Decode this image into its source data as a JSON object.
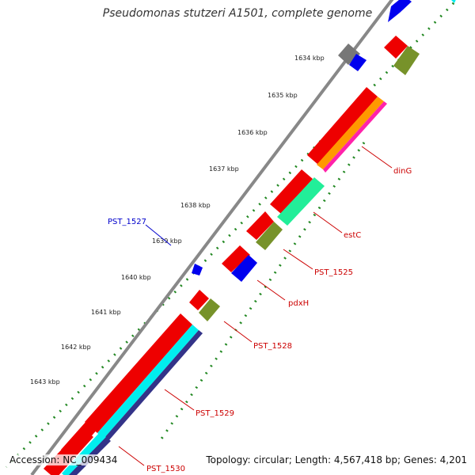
{
  "genome": {
    "title": "Pseudomonas stutzeri A1501, complete genome",
    "accession": "Accession: NC_009434",
    "summary": "Topology: circular; Length: 4,567,418 bp; Genes: 4,201"
  },
  "scale": {
    "tick_labels": [
      "1634 kbp",
      "1635 kbp",
      "1636 kbp",
      "1637 kbp",
      "1638 kbp",
      "1639 kbp",
      "1640 kbp",
      "1641 kbp",
      "1642 kbp",
      "1643 kbp"
    ]
  },
  "gene_labels": {
    "dinG": "dinG",
    "estC": "estC",
    "pst1525": "PST_1525",
    "pst1527": "PST_1527",
    "pdxH": "pdxH",
    "pst1528": "PST_1528",
    "pst1529": "PST_1529",
    "pst1530": "PST_1530"
  },
  "colors": {
    "backbone": "#888888",
    "cds": "#ee0000",
    "cds_reverse": "#0000ee",
    "cog_green": "#77922a",
    "cog_spring": "#22ee99",
    "cog_orange": "#ff9900",
    "cog_pink": "#ff22aa",
    "cog_cyan": "#00eeee",
    "cog_navy": "#333388",
    "cog_gray": "#777777",
    "tick_green": "#228822",
    "label_red": "#cc0000",
    "label_blue": "#0000cc"
  }
}
